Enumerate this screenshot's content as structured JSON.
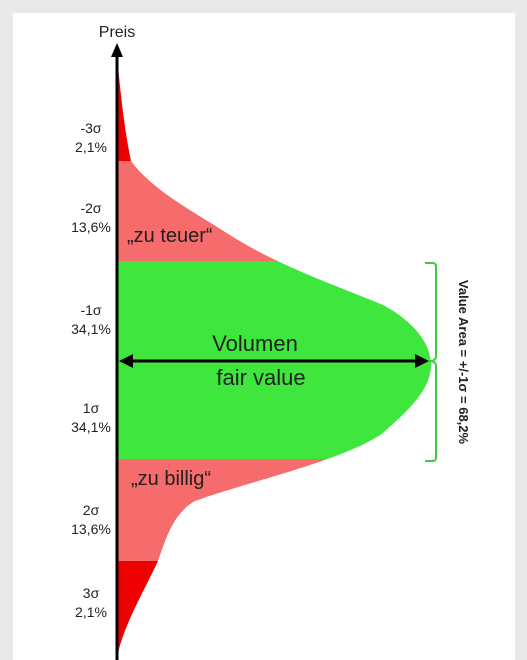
{
  "axis": {
    "label": "Preis"
  },
  "levels": [
    {
      "sigma": "-3σ",
      "pct": "2,1%"
    },
    {
      "sigma": "-2σ",
      "pct": "13,6%"
    },
    {
      "sigma": "-1σ",
      "pct": "34,1%"
    },
    {
      "sigma": "1σ",
      "pct": "34,1%"
    },
    {
      "sigma": "2σ",
      "pct": "13,6%"
    },
    {
      "sigma": "3σ",
      "pct": "2,1%"
    }
  ],
  "zones": {
    "expensive": "„zu teuer“",
    "cheap": "„zu billig“",
    "volume": "Volumen",
    "fair_value": "fair value"
  },
  "value_area": {
    "label": "Value Area = +/-1σ = 68,2%"
  },
  "colors": {
    "tail": "#ee0000",
    "outer": "#f66b6b",
    "core": "#3ee63e",
    "bracket": "#3ecc3e",
    "axis": "#000000"
  }
}
